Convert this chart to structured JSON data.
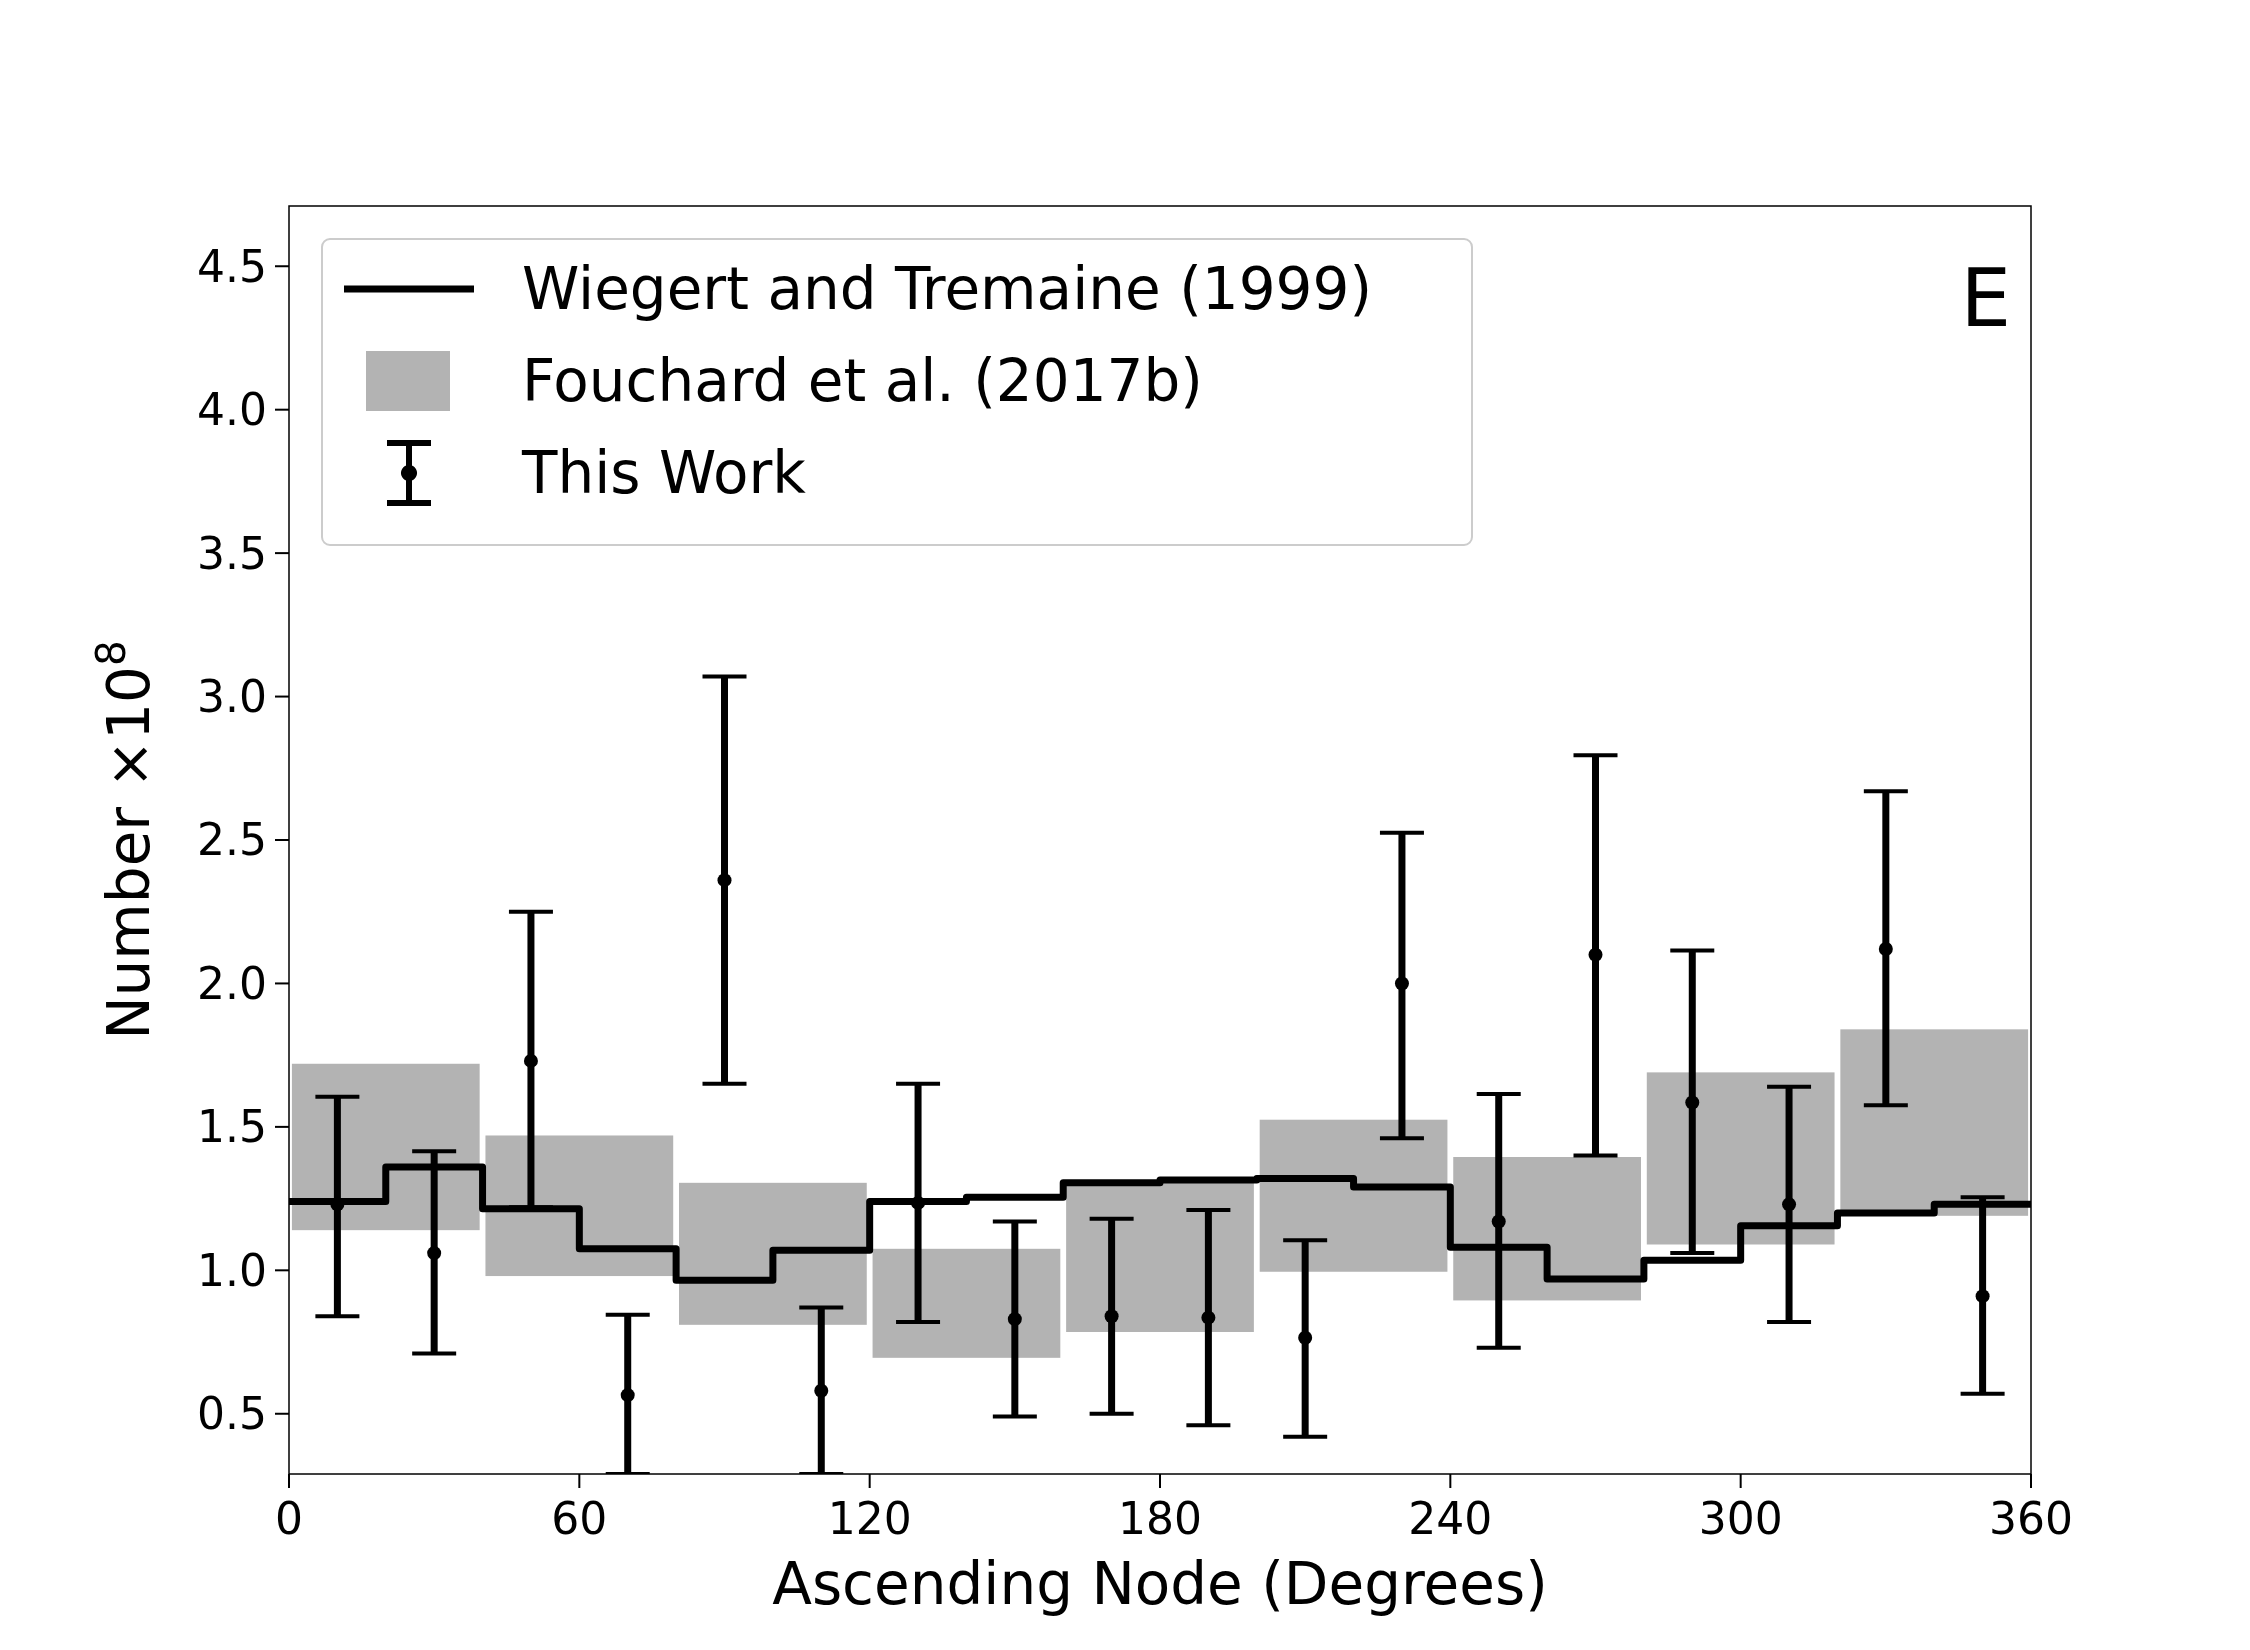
{
  "chart_data": {
    "type": "scatter",
    "xlabel": "Ascending Node (Degrees)",
    "ylabel": "Number ×10$^{8}$",
    "xlim": [
      0,
      360
    ],
    "xticks": [
      0,
      60,
      120,
      180,
      240,
      300,
      360
    ],
    "ylim": [
      0.29,
      4.71
    ],
    "yticks": [
      0.5,
      {
        "value": 1,
        "label": "1.0"
      },
      1.5,
      {
        "value": 2,
        "label": "2.0"
      },
      2.5,
      {
        "value": 3,
        "label": "3.0"
      },
      3.5,
      {
        "value": 4,
        "label": "4.0"
      },
      4.5
    ],
    "grid": false,
    "legend": "top left",
    "annotations": [
      "E"
    ],
    "series": [
      {
        "name": "Fouchard et al. (2017b)",
        "type": "bar",
        "color": "#b3b3b3",
        "x": [
          20,
          60,
          100,
          140,
          180,
          220,
          260,
          300,
          340
        ],
        "base": [
          1.14,
          0.98,
          0.81,
          0.695,
          0.785,
          0.995,
          0.895,
          1.09,
          1.19
        ],
        "values": [
          0.58,
          0.49,
          0.495,
          0.38,
          0.52,
          0.53,
          0.5,
          0.6,
          0.65
        ]
      },
      {
        "name": "Wiegert and Tremaine (1999)",
        "type": "step",
        "color": "#000000",
        "x": [
          0,
          20,
          40,
          60,
          80,
          100,
          120,
          140,
          160,
          180,
          200,
          220,
          240,
          260,
          280,
          300,
          320,
          340,
          360
        ],
        "values": [
          1.24,
          1.36,
          1.215,
          1.075,
          0.965,
          1.07,
          1.24,
          1.255,
          1.305,
          1.315,
          1.32,
          1.29,
          1.08,
          0.97,
          1.035,
          1.155,
          1.2,
          1.23,
          1.23
        ]
      },
      {
        "name": "This Work",
        "color": "#000000",
        "marker": "circle",
        "x": [
          10,
          30,
          50,
          70,
          90,
          110,
          130,
          150,
          170,
          190,
          210,
          230,
          250,
          270,
          290,
          310,
          330,
          350
        ],
        "values": [
          1.23,
          1.06,
          1.73,
          0.565,
          2.36,
          0.58,
          1.235,
          0.83,
          0.84,
          0.835,
          0.765,
          2.0,
          1.17,
          2.1,
          1.585,
          1.23,
          2.12,
          0.91
        ],
        "errors": [
          [
            0.84,
            1.605
          ],
          [
            0.71,
            1.415
          ],
          [
            1.22,
            2.25
          ],
          [
            0.29,
            0.845
          ],
          [
            1.65,
            3.07
          ],
          [
            0.29,
            0.87
          ],
          [
            0.82,
            1.65
          ],
          [
            0.49,
            1.17
          ],
          [
            0.5,
            1.18
          ],
          [
            0.46,
            1.21
          ],
          [
            0.42,
            1.105
          ],
          [
            1.46,
            2.525
          ],
          [
            0.73,
            1.615
          ],
          [
            1.4,
            2.795
          ],
          [
            1.06,
            2.115
          ],
          [
            0.82,
            1.64
          ],
          [
            1.575,
            2.67
          ],
          [
            0.57,
            1.255
          ]
        ]
      }
    ]
  }
}
